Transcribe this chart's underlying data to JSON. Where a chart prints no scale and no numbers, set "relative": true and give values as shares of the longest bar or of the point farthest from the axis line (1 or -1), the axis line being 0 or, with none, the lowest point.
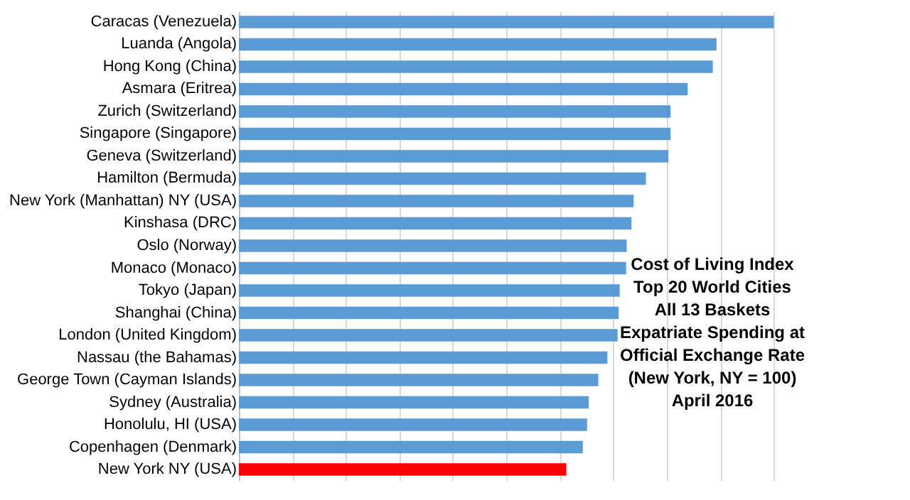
{
  "chart_data": {
    "type": "bar",
    "orientation": "horizontal",
    "relative": true,
    "grid": "x",
    "categories": [
      "Caracas (Venezuela)",
      "Luanda (Angola)",
      "Hong Kong (China)",
      "Asmara (Eritrea)",
      "Zurich (Switzerland)",
      "Singapore (Singapore)",
      "Geneva (Switzerland)",
      "Hamilton (Bermuda)",
      "New York (Manhattan) NY (USA)",
      "Kinshasa (DRC)",
      "Oslo (Norway)",
      "Monaco (Monaco)",
      "Tokyo (Japan)",
      "Shanghai (China)",
      "London (United Kingdom)",
      "Nassau (the Bahamas)",
      "George Town (Cayman Islands)",
      "Sydney (Australia)",
      "Honolulu, HI (USA)",
      "Copenhagen (Denmark)",
      "New York NY (USA)"
    ],
    "values": [
      1,
      0.893,
      0.886,
      0.839,
      0.807,
      0.807,
      0.803,
      0.761,
      0.738,
      0.734,
      0.725,
      0.724,
      0.712,
      0.71,
      0.708,
      0.689,
      0.672,
      0.654,
      0.651,
      0.643,
      0.612
    ],
    "colors": [
      "#5b9bd5",
      "#5b9bd5",
      "#5b9bd5",
      "#5b9bd5",
      "#5b9bd5",
      "#5b9bd5",
      "#5b9bd5",
      "#5b9bd5",
      "#5b9bd5",
      "#5b9bd5",
      "#5b9bd5",
      "#5b9bd5",
      "#5b9bd5",
      "#5b9bd5",
      "#5b9bd5",
      "#5b9bd5",
      "#5b9bd5",
      "#5b9bd5",
      "#5b9bd5",
      "#5b9bd5",
      "#ff0000"
    ],
    "annotations": [
      "Cost of Living Index",
      "Top 20 World Cities",
      "All 13 Baskets",
      "Expatriate Spending  at",
      "Official Exchange Rate",
      "(New York, NY = 100)",
      "April 2016"
    ]
  }
}
